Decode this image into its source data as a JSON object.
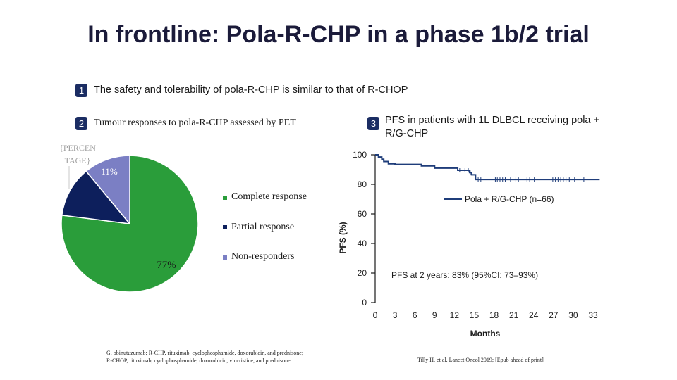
{
  "title": "In frontline: Pola-R-CHP in a phase 1b/2 trial",
  "point1": {
    "num": "1",
    "text": "The safety and tolerability of pola-R-CHP is similar to that of R-CHOP"
  },
  "point2": {
    "num": "2",
    "text": "Tumour responses to pola-R-CHP assessed by PET"
  },
  "point3": {
    "num": "3",
    "text_line1": "PFS in patients with 1L DLBCL receiving pola +",
    "text_line2": "R/G-CHP"
  },
  "footnote_left_line1": "G, obinutuzumab; R-CHP, rituximab, cyclophosphamide, doxorubicin, and prednisone;",
  "footnote_left_line2": "R-CHOP, rituximab, cyclophosphamide, doxorubicin, vincristine, and prednisone",
  "footnote_right": "Tilly H, et al. Lancet Oncol 2019; [Epub ahead of print]",
  "colors": {
    "complete": "#2a9d3a",
    "partial": "#0d1f5c",
    "non": "#7b7fc4",
    "km_line": "#1f3d7a",
    "badge": "#1b2d63"
  },
  "chart_data": [
    {
      "type": "pie",
      "slices": [
        {
          "label": "Complete response",
          "value": 77,
          "display": "77%"
        },
        {
          "label": "Partial response",
          "value": 12,
          "display": ""
        },
        {
          "label": "Non-responders",
          "value": 11,
          "display": "11%"
        }
      ],
      "leftover_label": "{PERCEN TAGE}"
    },
    {
      "type": "line",
      "ylabel": "PFS (%)",
      "xlabel": "Months",
      "ylim": [
        0,
        100
      ],
      "xlim": [
        0,
        33
      ],
      "yticks": [
        0,
        20,
        40,
        60,
        80,
        100
      ],
      "xticks": [
        0,
        3,
        6,
        9,
        12,
        15,
        18,
        21,
        24,
        27,
        30,
        33
      ],
      "series": [
        {
          "name": "Pola + R/G-CHP (n=66)",
          "x": [
            0,
            0.5,
            0.5,
            1.0,
            1.0,
            1.3,
            1.3,
            2.0,
            2.0,
            3.0,
            3.0,
            7.0,
            7.0,
            9.0,
            9.0,
            12.5,
            12.5,
            14.3,
            14.3,
            14.6,
            14.6,
            15.2,
            15.2,
            34.0
          ],
          "y": [
            100,
            100,
            98.5,
            98.5,
            97,
            97,
            95.5,
            95.5,
            93.9,
            93.9,
            93.5,
            93.5,
            92.5,
            92.5,
            91,
            91,
            89.5,
            89.5,
            88,
            88,
            86.5,
            86.5,
            83.3,
            83.3
          ],
          "censors": [
            {
              "x": 12.8,
              "y": 89.5
            },
            {
              "x": 13.6,
              "y": 89.5
            },
            {
              "x": 14.1,
              "y": 89.5
            },
            {
              "x": 14.4,
              "y": 88
            },
            {
              "x": 15.6,
              "y": 83.3
            },
            {
              "x": 16.0,
              "y": 83.3
            },
            {
              "x": 18.2,
              "y": 83.3
            },
            {
              "x": 18.5,
              "y": 83.3
            },
            {
              "x": 18.9,
              "y": 83.3
            },
            {
              "x": 19.3,
              "y": 83.3
            },
            {
              "x": 19.7,
              "y": 83.3
            },
            {
              "x": 20.5,
              "y": 83.3
            },
            {
              "x": 21.3,
              "y": 83.3
            },
            {
              "x": 21.7,
              "y": 83.3
            },
            {
              "x": 23.0,
              "y": 83.3
            },
            {
              "x": 23.4,
              "y": 83.3
            },
            {
              "x": 24.1,
              "y": 83.3
            },
            {
              "x": 26.9,
              "y": 83.3
            },
            {
              "x": 27.3,
              "y": 83.3
            },
            {
              "x": 27.7,
              "y": 83.3
            },
            {
              "x": 28.1,
              "y": 83.3
            },
            {
              "x": 28.5,
              "y": 83.3
            },
            {
              "x": 28.9,
              "y": 83.3
            },
            {
              "x": 29.4,
              "y": 83.3
            },
            {
              "x": 30.2,
              "y": 83.3
            },
            {
              "x": 31.6,
              "y": 83.3
            }
          ]
        }
      ],
      "annotation": "PFS at 2 years: 83% (95%CI: 73–93%)"
    }
  ]
}
